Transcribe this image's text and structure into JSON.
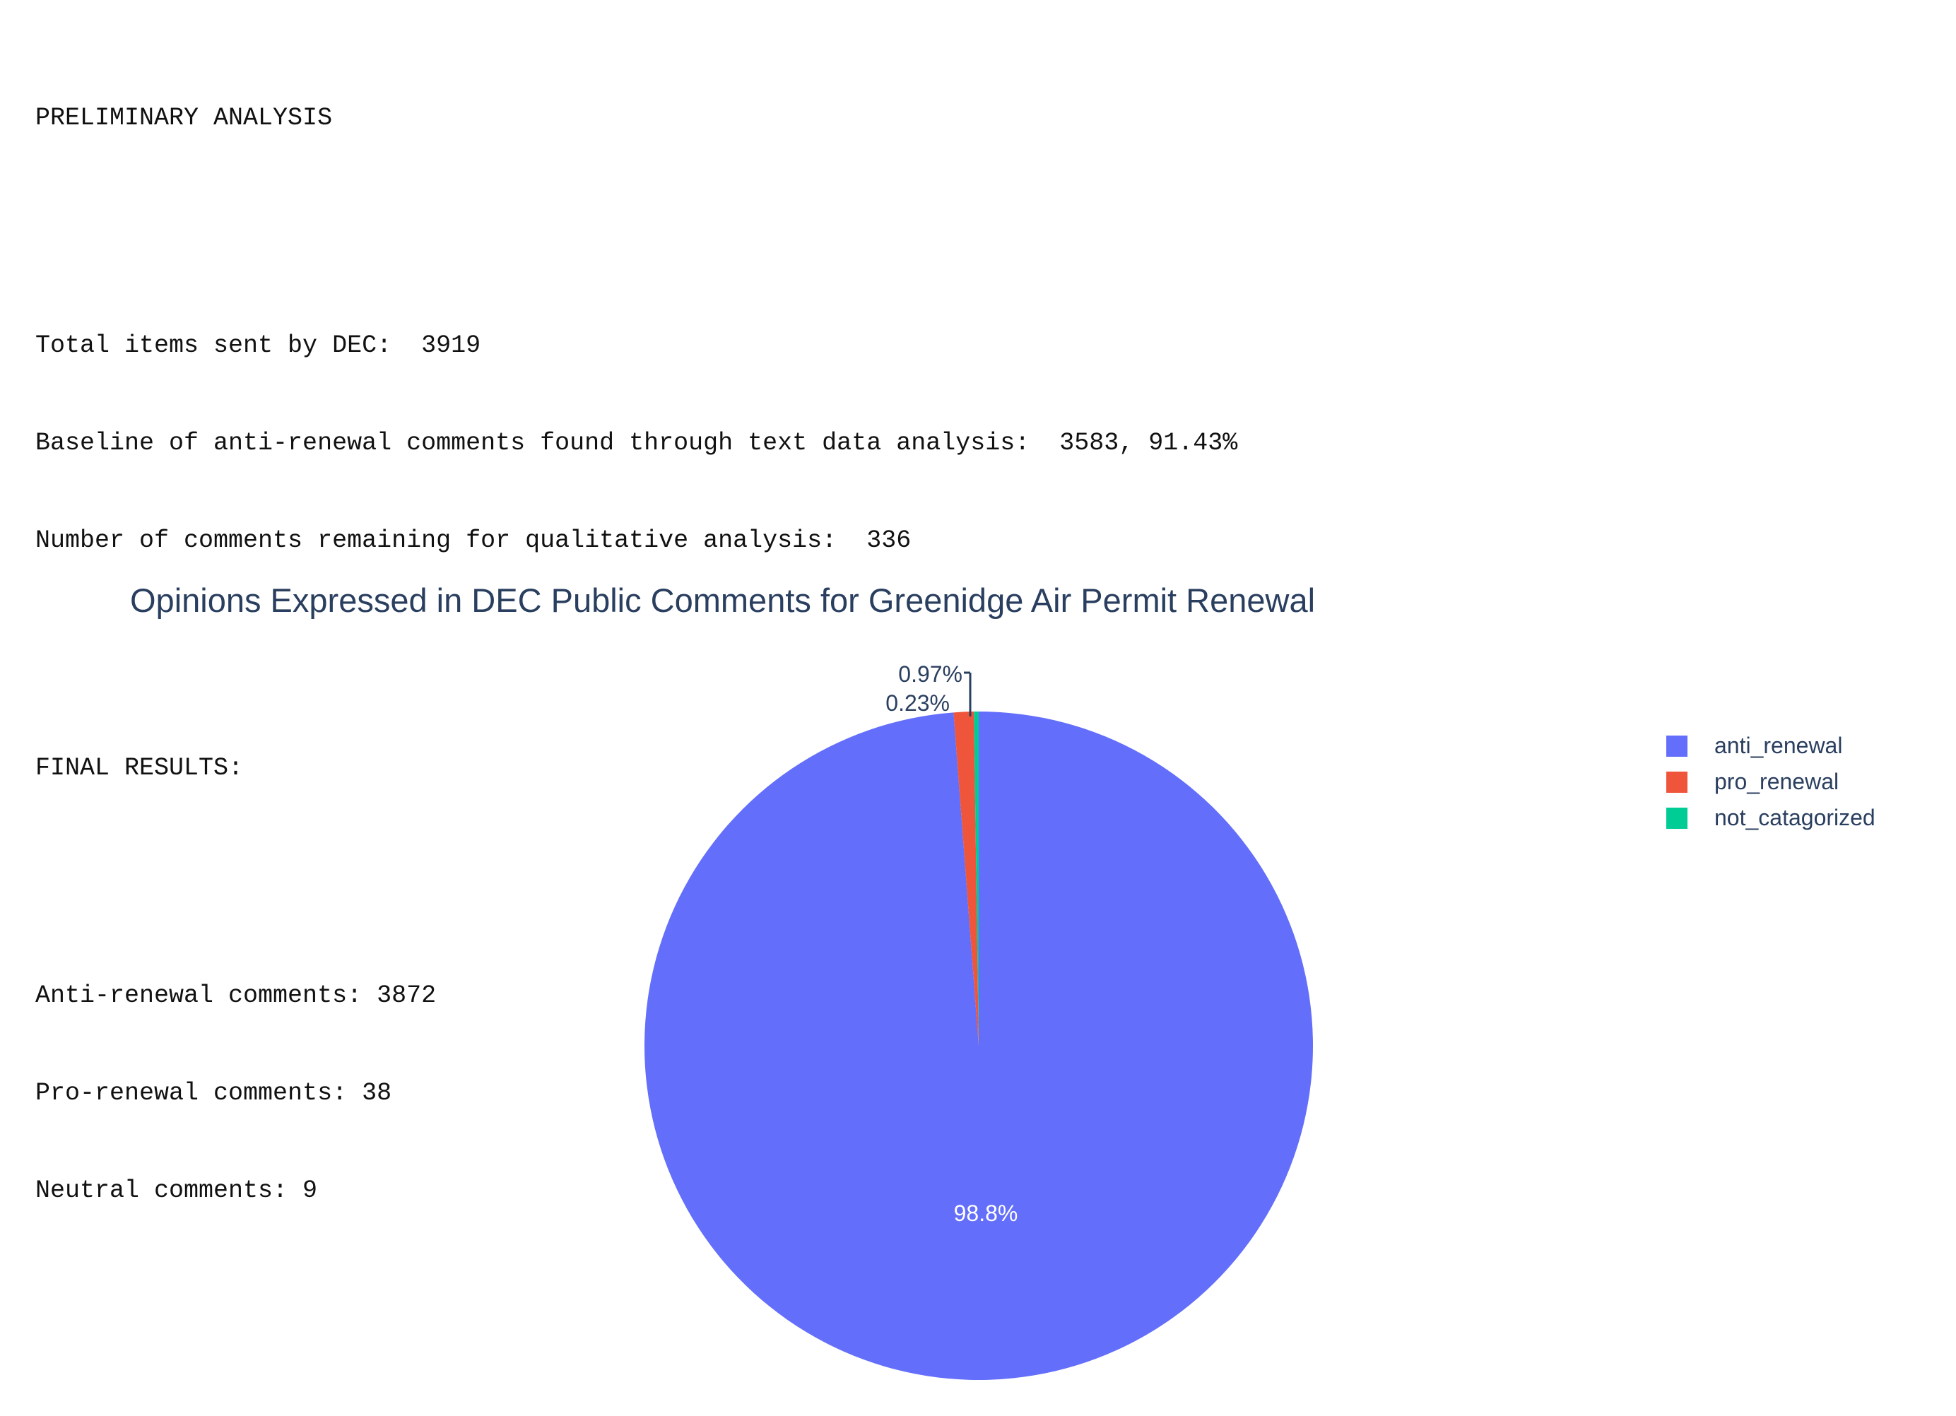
{
  "report": {
    "preliminary_heading": "PRELIMINARY ANALYSIS",
    "total_items": "Total items sent by DEC:  3919",
    "baseline": "Baseline of anti-renewal comments found through text data analysis:  3583, 91.43%",
    "remaining": "Number of comments remaining for qualitative analysis:  336",
    "final_heading": "FINAL RESULTS:",
    "anti_count": "Anti-renewal comments: 3872",
    "pro_count": "Pro-renewal comments: 38",
    "neutral_count": "Neutral comments: 9"
  },
  "chart_data": {
    "type": "pie",
    "title": "Opinions Expressed in DEC Public Comments for Greenidge Air Permit Renewal",
    "labels": [
      "anti_renewal",
      "pro_renewal",
      "not_catagorized"
    ],
    "values": [
      3872,
      38,
      9
    ],
    "percent_labels": [
      "98.8%",
      "0.97%",
      "0.23%"
    ],
    "colors": [
      "#636efa",
      "#ef553b",
      "#00cc96"
    ],
    "legend_position": "top-right",
    "direction": "clockwise",
    "rotation_start": "12 o'clock"
  }
}
